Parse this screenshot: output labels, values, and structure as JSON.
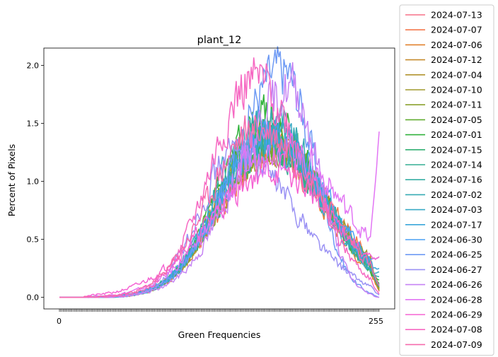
{
  "chart_data": {
    "type": "line",
    "title": "plant_12",
    "xlabel": "Green Frequencies",
    "ylabel": "Percent of Pixels",
    "xlim": [
      0,
      255
    ],
    "ylim": [
      -0.1,
      2.15
    ],
    "yticks": [
      "0.0",
      "0.5",
      "1.0",
      "1.5",
      "2.0"
    ],
    "x_first_label": "0",
    "x_last_label": "255",
    "legend": "outside-right",
    "series": [
      {
        "name": "2024-07-13",
        "color": "#f77189",
        "peak": 1.3,
        "center": 165,
        "left_w": 38,
        "right_w": 48,
        "end": 0.05,
        "seed": 1
      },
      {
        "name": "2024-07-07",
        "color": "#f3794d",
        "peak": 1.25,
        "center": 168,
        "left_w": 40,
        "right_w": 50,
        "end": 0.08,
        "seed": 2
      },
      {
        "name": "2024-07-06",
        "color": "#e1812d",
        "peak": 1.35,
        "center": 163,
        "left_w": 36,
        "right_w": 46,
        "end": 0.06,
        "seed": 3
      },
      {
        "name": "2024-07-12",
        "color": "#c68b2e",
        "peak": 1.28,
        "center": 166,
        "left_w": 38,
        "right_w": 48,
        "end": 0.07,
        "seed": 4
      },
      {
        "name": "2024-07-04",
        "color": "#b1932e",
        "peak": 1.4,
        "center": 164,
        "left_w": 37,
        "right_w": 45,
        "end": 0.1,
        "seed": 5
      },
      {
        "name": "2024-07-10",
        "color": "#a09a2f",
        "peak": 1.3,
        "center": 167,
        "left_w": 39,
        "right_w": 49,
        "end": 0.06,
        "seed": 6
      },
      {
        "name": "2024-07-11",
        "color": "#8ba12f",
        "peak": 1.32,
        "center": 166,
        "left_w": 38,
        "right_w": 48,
        "end": 0.08,
        "seed": 7
      },
      {
        "name": "2024-07-05",
        "color": "#62ac30",
        "peak": 1.42,
        "center": 162,
        "left_w": 36,
        "right_w": 46,
        "end": 0.12,
        "seed": 8
      },
      {
        "name": "2024-07-01",
        "color": "#31b23b",
        "peak": 1.55,
        "center": 163,
        "left_w": 36,
        "right_w": 44,
        "end": 0.15,
        "seed": 9
      },
      {
        "name": "2024-07-15",
        "color": "#33b074",
        "peak": 1.35,
        "center": 165,
        "left_w": 38,
        "right_w": 47,
        "end": 0.1,
        "seed": 10
      },
      {
        "name": "2024-07-14",
        "color": "#35ae93",
        "peak": 1.3,
        "center": 166,
        "left_w": 39,
        "right_w": 48,
        "end": 0.09,
        "seed": 11
      },
      {
        "name": "2024-07-16",
        "color": "#36ada4",
        "peak": 1.38,
        "center": 164,
        "left_w": 37,
        "right_w": 46,
        "end": 0.11,
        "seed": 12
      },
      {
        "name": "2024-07-02",
        "color": "#37abb4",
        "peak": 1.6,
        "center": 162,
        "left_w": 35,
        "right_w": 44,
        "end": 0.18,
        "seed": 13
      },
      {
        "name": "2024-07-03",
        "color": "#38a9c5",
        "peak": 1.45,
        "center": 163,
        "left_w": 36,
        "right_w": 45,
        "end": 0.22,
        "seed": 14
      },
      {
        "name": "2024-07-17",
        "color": "#3aa6da",
        "peak": 1.35,
        "center": 166,
        "left_w": 38,
        "right_w": 47,
        "end": 0.25,
        "seed": 15
      },
      {
        "name": "2024-06-30",
        "color": "#4aa0f4",
        "peak": 1.4,
        "center": 168,
        "left_w": 40,
        "right_w": 46,
        "end": 0.35,
        "seed": 16
      },
      {
        "name": "2024-06-25",
        "color": "#6e9af4",
        "peak": 1.95,
        "center": 178,
        "left_w": 40,
        "right_w": 25,
        "end": 0.0,
        "seed": 17
      },
      {
        "name": "2024-06-27",
        "color": "#9a91f4",
        "peak": 1.25,
        "center": 140,
        "left_w": 28,
        "right_w": 48,
        "end": 0.02,
        "seed": 18
      },
      {
        "name": "2024-06-26",
        "color": "#c683f4",
        "peak": 1.8,
        "center": 185,
        "left_w": 42,
        "right_w": 22,
        "end": 0.0,
        "seed": 19
      },
      {
        "name": "2024-06-28",
        "color": "#e275f4",
        "peak": 1.3,
        "center": 175,
        "left_w": 46,
        "right_w": 52,
        "end": 1.43,
        "seed": 20
      },
      {
        "name": "2024-06-29",
        "color": "#f563d3",
        "peak": 1.1,
        "center": 170,
        "left_w": 50,
        "right_w": 50,
        "end": 0.35,
        "seed": 21
      },
      {
        "name": "2024-07-08",
        "color": "#f668c2",
        "peak": 1.85,
        "center": 155,
        "left_w": 34,
        "right_w": 42,
        "end": 0.03,
        "seed": 22
      },
      {
        "name": "2024-07-09",
        "color": "#f66bad",
        "peak": 1.45,
        "center": 158,
        "left_w": 38,
        "right_w": 50,
        "end": 0.1,
        "seed": 23
      }
    ]
  }
}
